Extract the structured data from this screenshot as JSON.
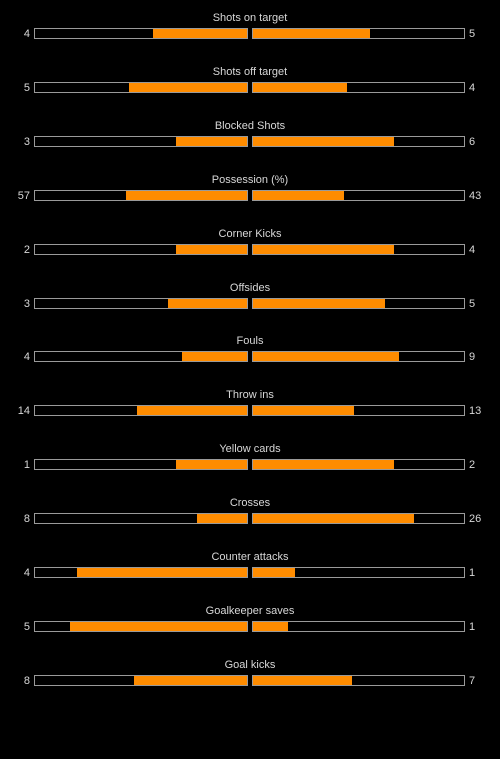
{
  "colors": {
    "background": "#000000",
    "bar_fill": "#ff8c00",
    "bar_border": "#9a9a9a",
    "text": "#d8d8d8"
  },
  "stats": [
    {
      "label": "Shots on target",
      "home": "4",
      "away": "5",
      "home_frac": 0.444,
      "away_frac": 0.556
    },
    {
      "label": "Shots off target",
      "home": "5",
      "away": "4",
      "home_frac": 0.556,
      "away_frac": 0.444
    },
    {
      "label": "Blocked Shots",
      "home": "3",
      "away": "6",
      "home_frac": 0.333,
      "away_frac": 0.667
    },
    {
      "label": "Possession (%)",
      "home": "57",
      "away": "43",
      "home_frac": 0.57,
      "away_frac": 0.43
    },
    {
      "label": "Corner Kicks",
      "home": "2",
      "away": "4",
      "home_frac": 0.333,
      "away_frac": 0.667
    },
    {
      "label": "Offsides",
      "home": "3",
      "away": "5",
      "home_frac": 0.375,
      "away_frac": 0.625
    },
    {
      "label": "Fouls",
      "home": "4",
      "away": "9",
      "home_frac": 0.308,
      "away_frac": 0.692
    },
    {
      "label": "Throw ins",
      "home": "14",
      "away": "13",
      "home_frac": 0.519,
      "away_frac": 0.481
    },
    {
      "label": "Yellow cards",
      "home": "1",
      "away": "2",
      "home_frac": 0.333,
      "away_frac": 0.667
    },
    {
      "label": "Crosses",
      "home": "8",
      "away": "26",
      "home_frac": 0.235,
      "away_frac": 0.765
    },
    {
      "label": "Counter attacks",
      "home": "4",
      "away": "1",
      "home_frac": 0.8,
      "away_frac": 0.2
    },
    {
      "label": "Goalkeeper saves",
      "home": "5",
      "away": "1",
      "home_frac": 0.833,
      "away_frac": 0.167
    },
    {
      "label": "Goal kicks",
      "home": "8",
      "away": "7",
      "home_frac": 0.533,
      "away_frac": 0.467
    }
  ]
}
